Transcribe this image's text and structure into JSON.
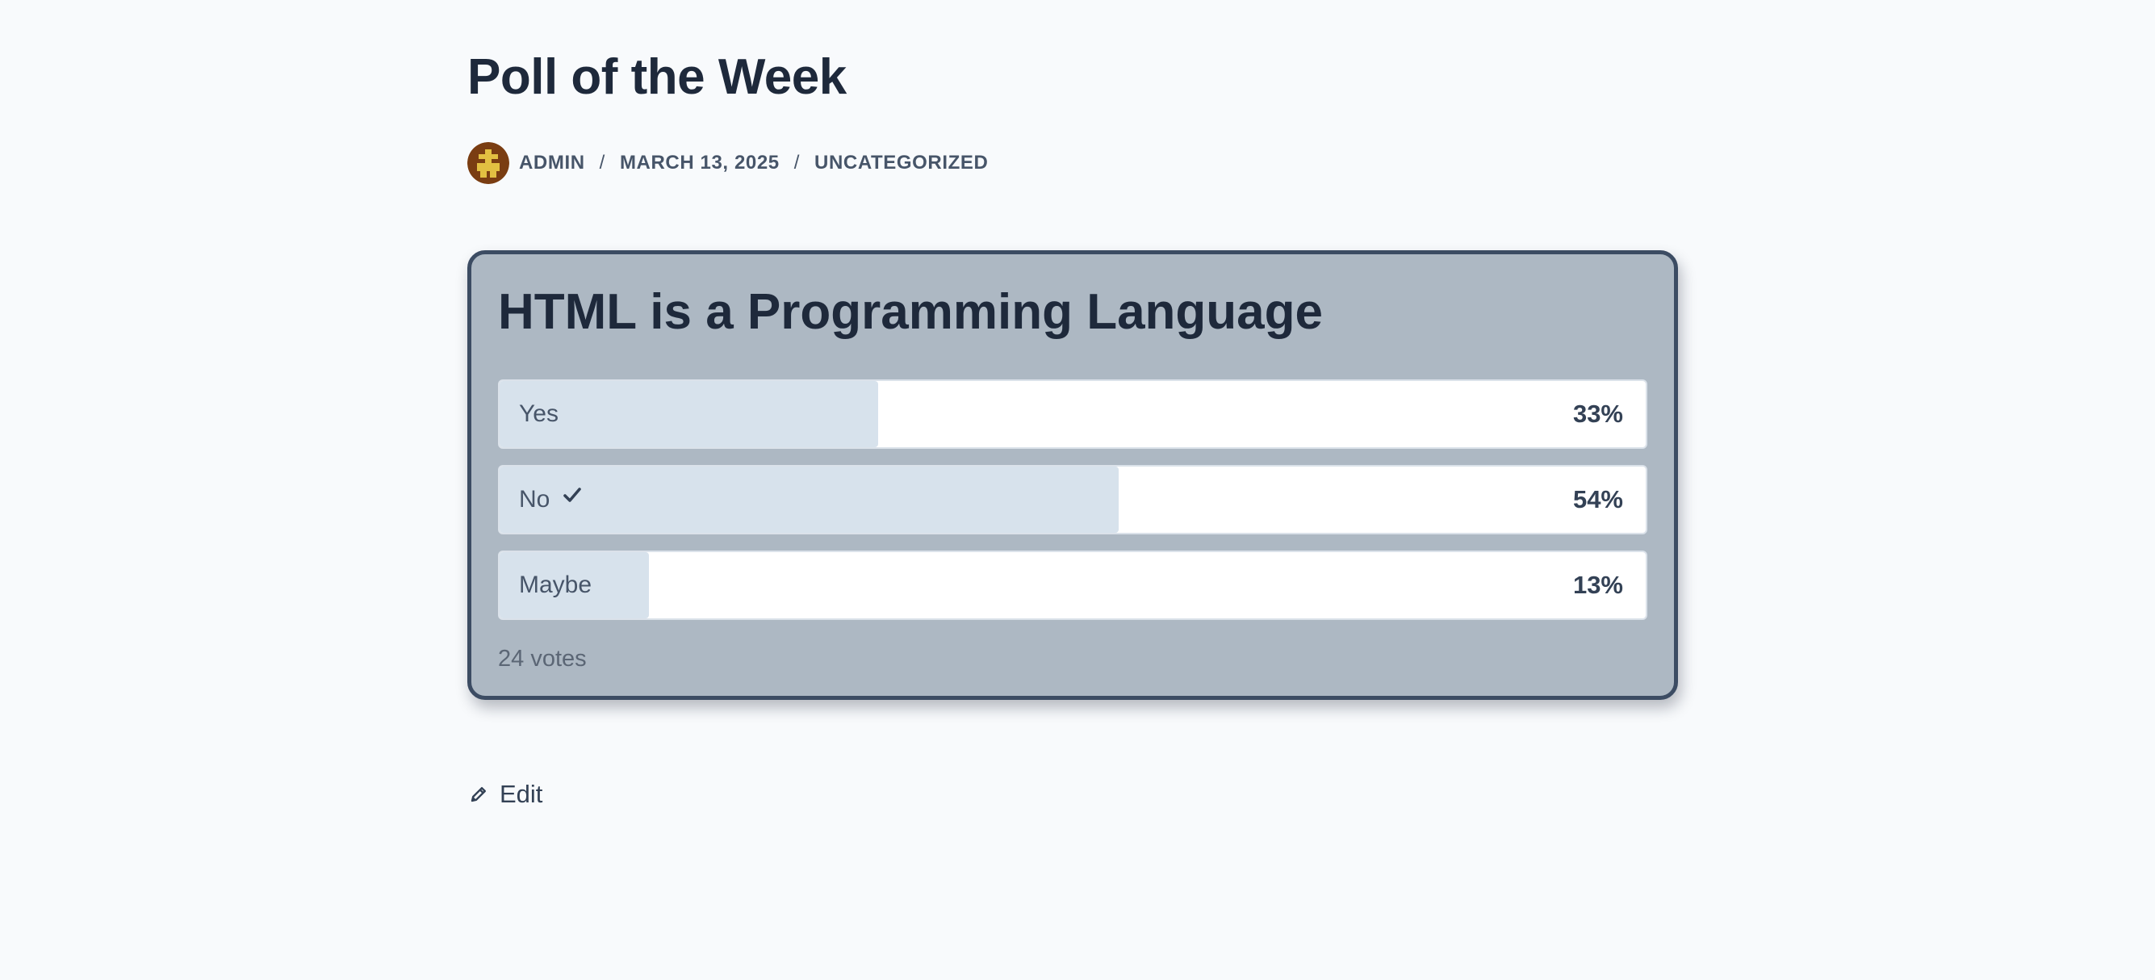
{
  "post": {
    "title": "Poll of the Week",
    "meta": {
      "author": "ADMIN",
      "separator": "/",
      "date": "MARCH 13, 2025",
      "category": "UNCATEGORIZED",
      "avatar_icon": "pixel-avatar-icon"
    }
  },
  "poll": {
    "question": "HTML is a Programming Language",
    "options": [
      {
        "label": "Yes",
        "percent_text": "33%",
        "share": 0.33,
        "selected": false
      },
      {
        "label": "No",
        "percent_text": "54%",
        "share": 0.54,
        "selected": true
      },
      {
        "label": "Maybe",
        "percent_text": "13%",
        "share": 0.13,
        "selected": false
      }
    ],
    "votes_text": "24 votes",
    "selected_icon": "checkmark-icon",
    "colors": {
      "card_background": "#adb8c3",
      "card_border": "#3c4c63",
      "fill": "#d7e2ec",
      "option_background": "#ffffff"
    }
  },
  "actions": {
    "edit_label": "Edit",
    "edit_icon": "pencil-icon"
  }
}
